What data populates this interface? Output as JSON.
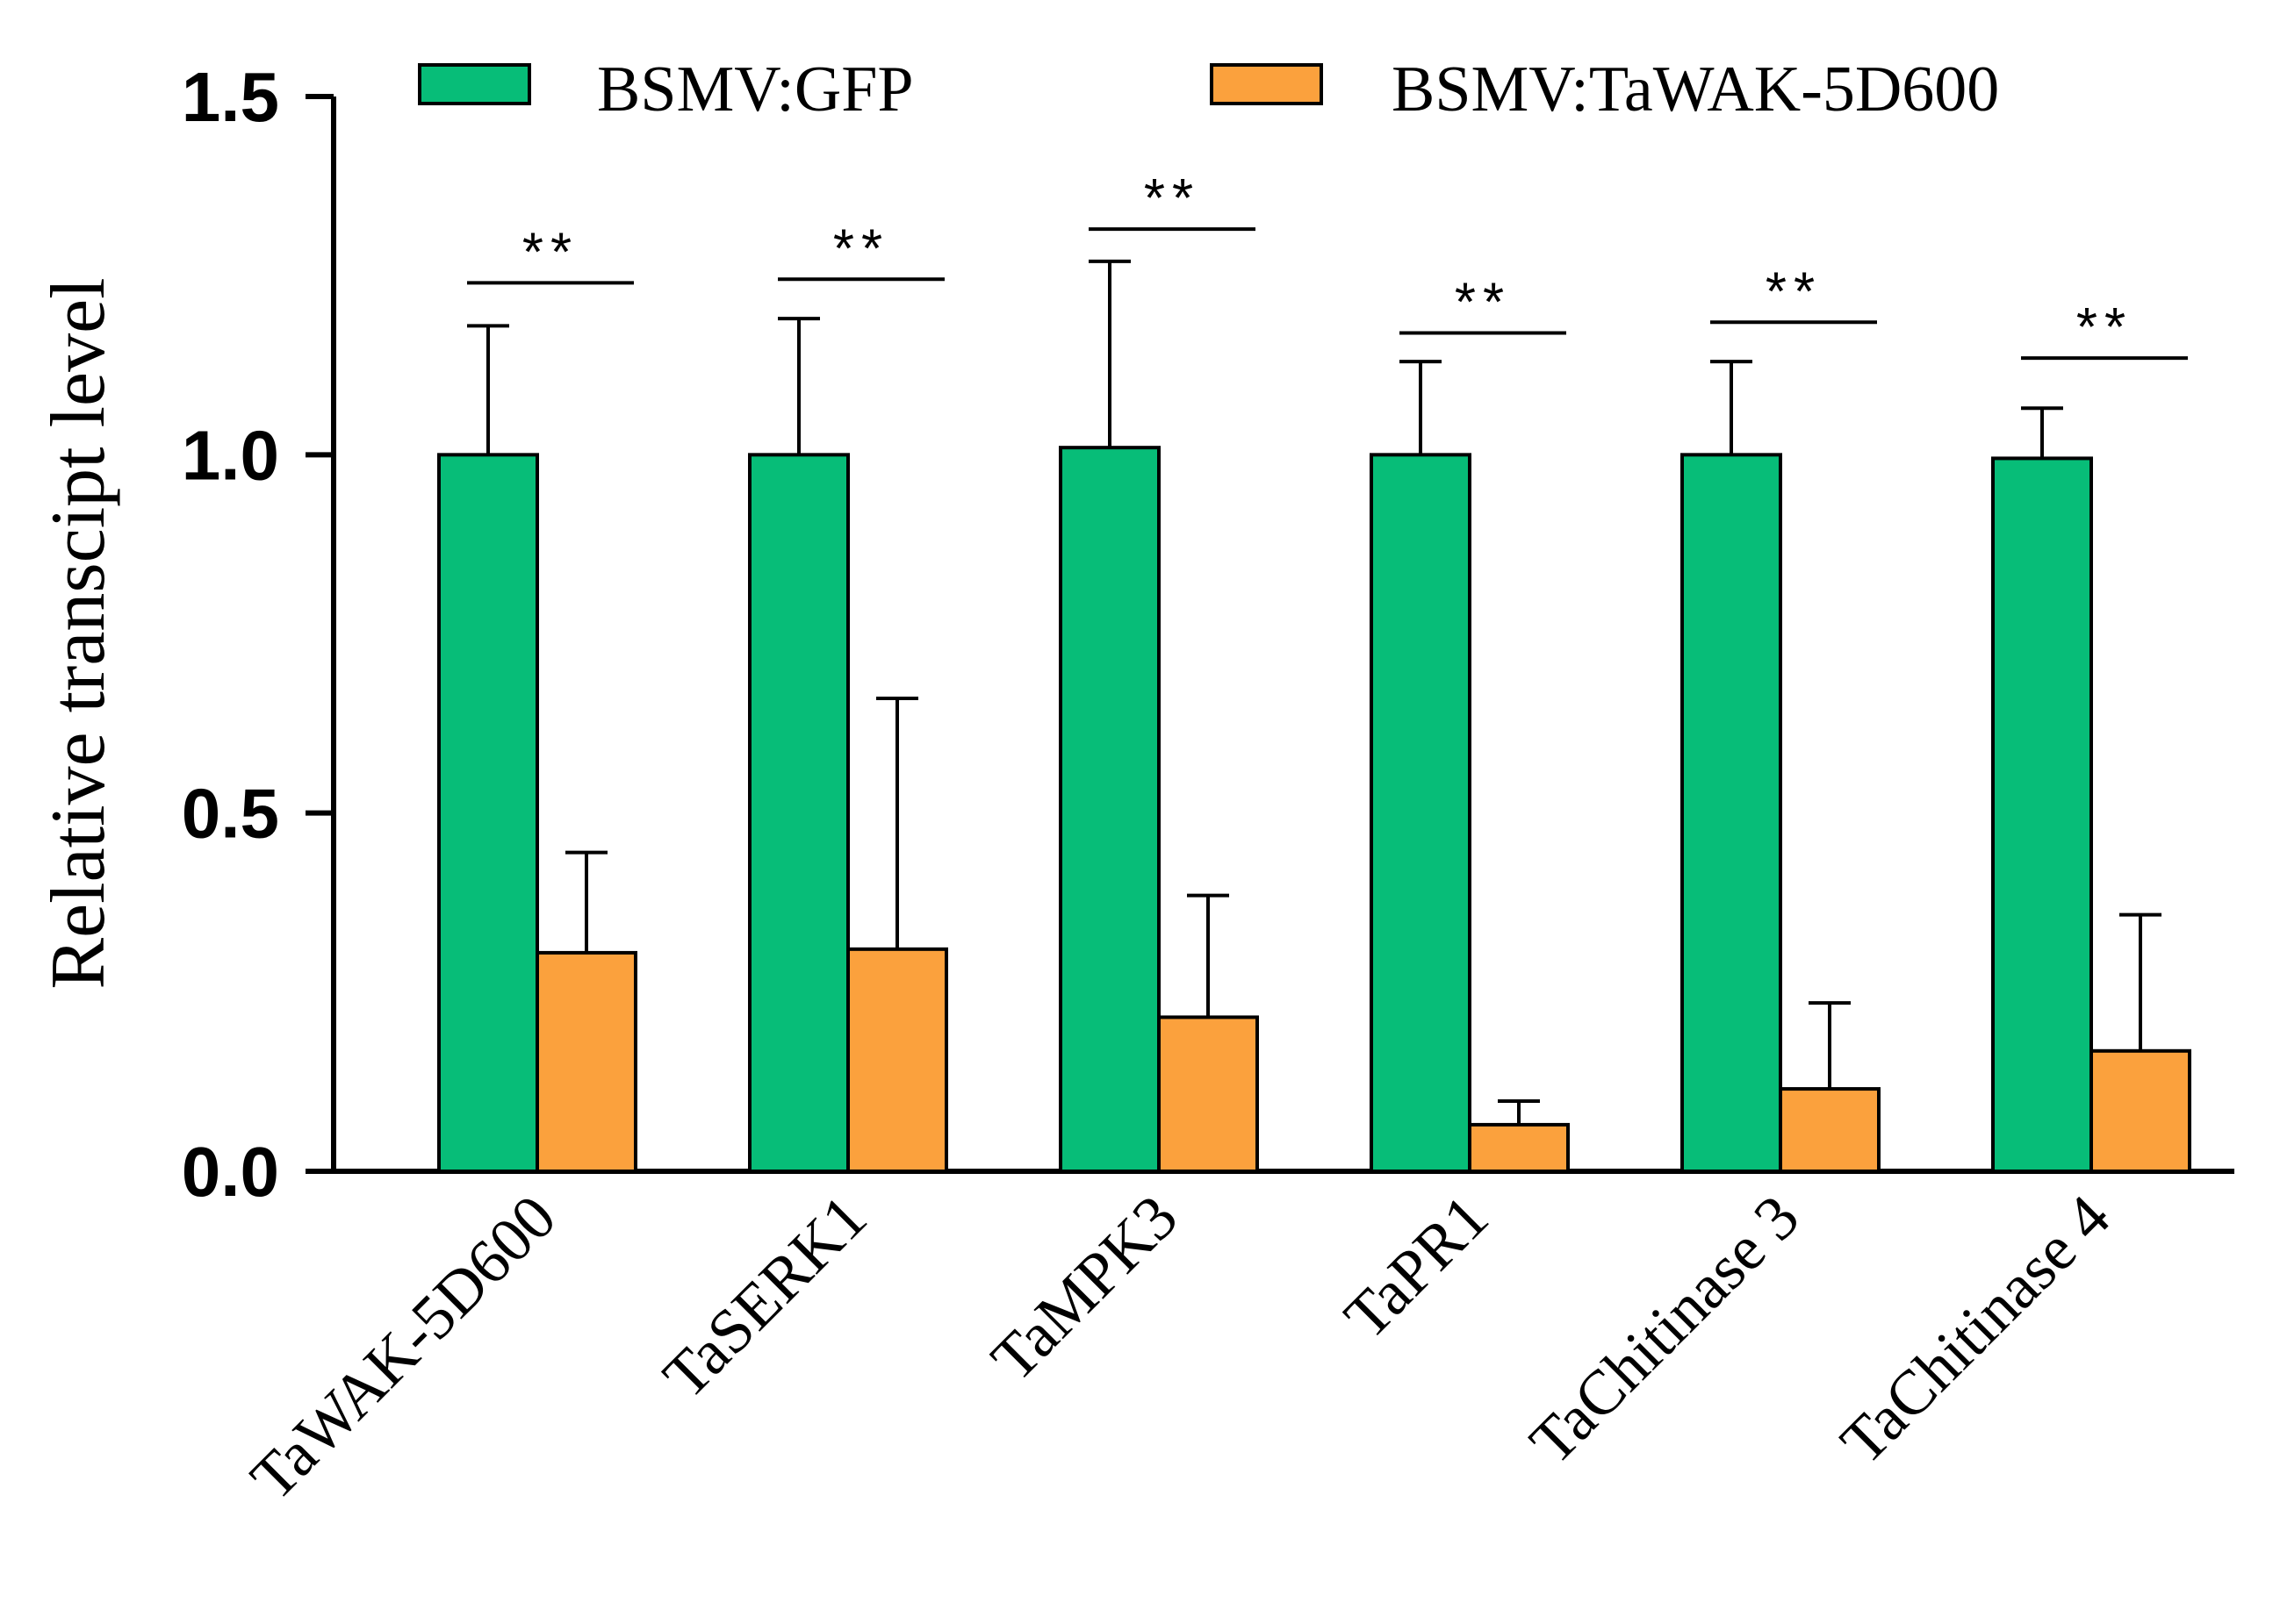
{
  "chart_data": {
    "type": "bar",
    "title": "",
    "xlabel": "",
    "ylabel": "Relative transcipt level",
    "ylim": [
      0,
      1.5
    ],
    "yticks": [
      "0.0",
      "0.5",
      "1.0",
      "1.5"
    ],
    "yticks_values": [
      0,
      0.5,
      1.0,
      1.5
    ],
    "categories": [
      "TaWAK-5D600",
      "TaSERK1",
      "TaMPK3",
      "TaPR1",
      "TaChitinase 3",
      "TaChitinase 4"
    ],
    "series": [
      {
        "name": "BSMV:GFP",
        "color": "#07BD78",
        "values": [
          1.0,
          1.0,
          1.01,
          1.0,
          1.0,
          0.995
        ],
        "errors": [
          0.18,
          0.19,
          0.26,
          0.13,
          0.13,
          0.07
        ]
      },
      {
        "name": "BSMV:TaWAK-5D600",
        "color": "#FBA13D",
        "values": [
          0.305,
          0.31,
          0.215,
          0.065,
          0.115,
          0.168
        ],
        "errors": [
          0.14,
          0.35,
          0.17,
          0.033,
          0.12,
          0.19
        ]
      }
    ],
    "significance": {
      "label": "**",
      "levels": [
        1.24,
        1.245,
        1.315,
        1.17,
        1.185,
        1.135
      ]
    },
    "legend_position": "top",
    "grid": false
  }
}
